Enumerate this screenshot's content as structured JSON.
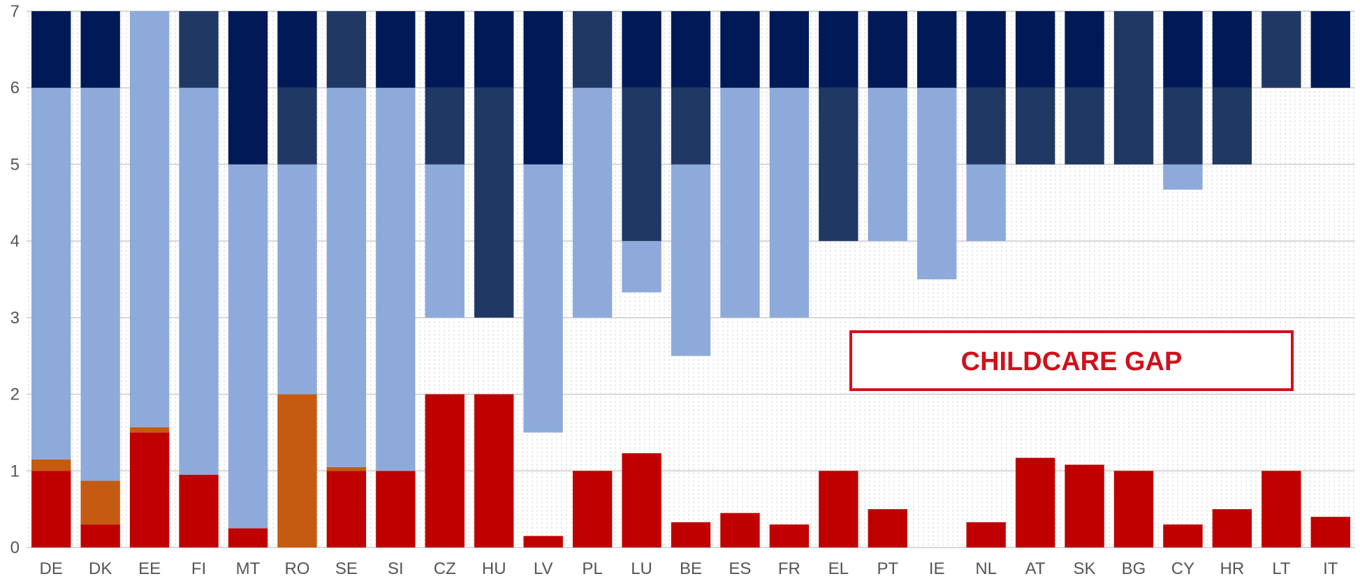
{
  "chart_data": {
    "type": "bar",
    "stacked": true,
    "ylim": [
      0,
      7
    ],
    "yticks": [
      0,
      1,
      2,
      3,
      4,
      5,
      6,
      7
    ],
    "grid": true,
    "annotation": "CHILDCARE GAP",
    "categories": [
      "DE",
      "DK",
      "EE",
      "FI",
      "MT",
      "RO",
      "SE",
      "SI",
      "CZ",
      "HU",
      "LV",
      "PL",
      "LU",
      "BE",
      "ES",
      "FR",
      "EL",
      "PT",
      "IE",
      "NL",
      "AT",
      "SK",
      "BG",
      "CY",
      "HR",
      "LT",
      "IT"
    ],
    "segments": [
      {
        "DE": [
          [
            0,
            1,
            "red"
          ],
          [
            1,
            1.15,
            "orange"
          ],
          [
            1.15,
            6,
            "light"
          ],
          [
            6,
            7,
            "dark"
          ]
        ]
      },
      {
        "DK": [
          [
            0,
            0.3,
            "red"
          ],
          [
            0.3,
            0.87,
            "orange"
          ],
          [
            0.87,
            6,
            "light"
          ],
          [
            6,
            7,
            "dark"
          ]
        ]
      },
      {
        "EE": [
          [
            0,
            1.5,
            "red"
          ],
          [
            1.5,
            1.57,
            "orange"
          ],
          [
            1.57,
            7,
            "light"
          ]
        ]
      },
      {
        "FI": [
          [
            0,
            0.95,
            "red"
          ],
          [
            0.95,
            6,
            "light"
          ],
          [
            6,
            7,
            "mid"
          ]
        ]
      },
      {
        "MT": [
          [
            0,
            0.25,
            "red"
          ],
          [
            0.25,
            5,
            "light"
          ],
          [
            5,
            7,
            "dark"
          ]
        ]
      },
      {
        "RO": [
          [
            0,
            2,
            "orange"
          ],
          [
            2,
            5,
            "light"
          ],
          [
            5,
            6,
            "mid"
          ],
          [
            6,
            7,
            "dark"
          ]
        ]
      },
      {
        "SE": [
          [
            0,
            1,
            "red"
          ],
          [
            1,
            1.05,
            "orange"
          ],
          [
            1.05,
            6,
            "light"
          ],
          [
            6,
            7,
            "mid"
          ]
        ]
      },
      {
        "SI": [
          [
            0,
            1,
            "red"
          ],
          [
            1,
            6,
            "light"
          ],
          [
            6,
            7,
            "dark"
          ]
        ]
      },
      {
        "CZ": [
          [
            0,
            2,
            "red"
          ],
          [
            3,
            5,
            "light"
          ],
          [
            5,
            6,
            "mid"
          ],
          [
            6,
            7,
            "dark"
          ]
        ]
      },
      {
        "HU": [
          [
            0,
            2,
            "red"
          ],
          [
            3,
            6,
            "mid"
          ],
          [
            6,
            7,
            "dark"
          ]
        ]
      },
      {
        "LV": [
          [
            0,
            0.15,
            "red"
          ],
          [
            1.5,
            5,
            "light"
          ],
          [
            5,
            7,
            "dark"
          ]
        ]
      },
      {
        "PL": [
          [
            0,
            1,
            "red"
          ],
          [
            3,
            6,
            "light"
          ],
          [
            6,
            7,
            "mid"
          ]
        ]
      },
      {
        "LU": [
          [
            0,
            1.23,
            "red"
          ],
          [
            3.33,
            4,
            "light"
          ],
          [
            4,
            6,
            "mid"
          ],
          [
            6,
            7,
            "dark"
          ]
        ]
      },
      {
        "BE": [
          [
            0,
            0.33,
            "red"
          ],
          [
            2.5,
            5,
            "light"
          ],
          [
            5,
            6,
            "mid"
          ],
          [
            6,
            7,
            "dark"
          ]
        ]
      },
      {
        "ES": [
          [
            0,
            0.45,
            "red"
          ],
          [
            3,
            6,
            "light"
          ],
          [
            6,
            7,
            "dark"
          ]
        ]
      },
      {
        "FR": [
          [
            0,
            0.3,
            "red"
          ],
          [
            3,
            6,
            "light"
          ],
          [
            6,
            7,
            "dark"
          ]
        ]
      },
      {
        "EL": [
          [
            0,
            1,
            "red"
          ],
          [
            4,
            6,
            "mid"
          ],
          [
            6,
            7,
            "dark"
          ]
        ]
      },
      {
        "PT": [
          [
            0,
            0.5,
            "red"
          ],
          [
            4,
            6,
            "light"
          ],
          [
            6,
            7,
            "dark"
          ]
        ]
      },
      {
        "IE": [
          [
            3.5,
            6,
            "light"
          ],
          [
            6,
            7,
            "dark"
          ]
        ]
      },
      {
        "NL": [
          [
            0,
            0.33,
            "red"
          ],
          [
            4,
            5,
            "light"
          ],
          [
            5,
            6,
            "mid"
          ],
          [
            6,
            7,
            "dark"
          ]
        ]
      },
      {
        "AT": [
          [
            0,
            1.17,
            "red"
          ],
          [
            5,
            6,
            "mid"
          ],
          [
            6,
            7,
            "dark"
          ]
        ]
      },
      {
        "SK": [
          [
            0,
            1.08,
            "red"
          ],
          [
            5,
            6,
            "mid"
          ],
          [
            6,
            7,
            "dark"
          ]
        ]
      },
      {
        "BG": [
          [
            0,
            1,
            "red"
          ],
          [
            5,
            7,
            "mid"
          ]
        ]
      },
      {
        "CY": [
          [
            0,
            0.3,
            "red"
          ],
          [
            4.67,
            5,
            "light"
          ],
          [
            5,
            6,
            "mid"
          ],
          [
            6,
            7,
            "dark"
          ]
        ]
      },
      {
        "HR": [
          [
            0,
            0.5,
            "red"
          ],
          [
            5,
            6,
            "mid"
          ],
          [
            6,
            7,
            "dark"
          ]
        ]
      },
      {
        "LT": [
          [
            0,
            1,
            "red"
          ],
          [
            6,
            7,
            "mid"
          ]
        ]
      },
      {
        "IT": [
          [
            0,
            0.4,
            "red"
          ],
          [
            6,
            7,
            "dark"
          ]
        ]
      }
    ],
    "colors": {
      "red": "#c00000",
      "orange": "#c55a11",
      "light": "#8eaadb",
      "mid": "#203864",
      "dark": "#001a57",
      "grid": "#cccccc",
      "annotation": "#d1101b"
    }
  }
}
